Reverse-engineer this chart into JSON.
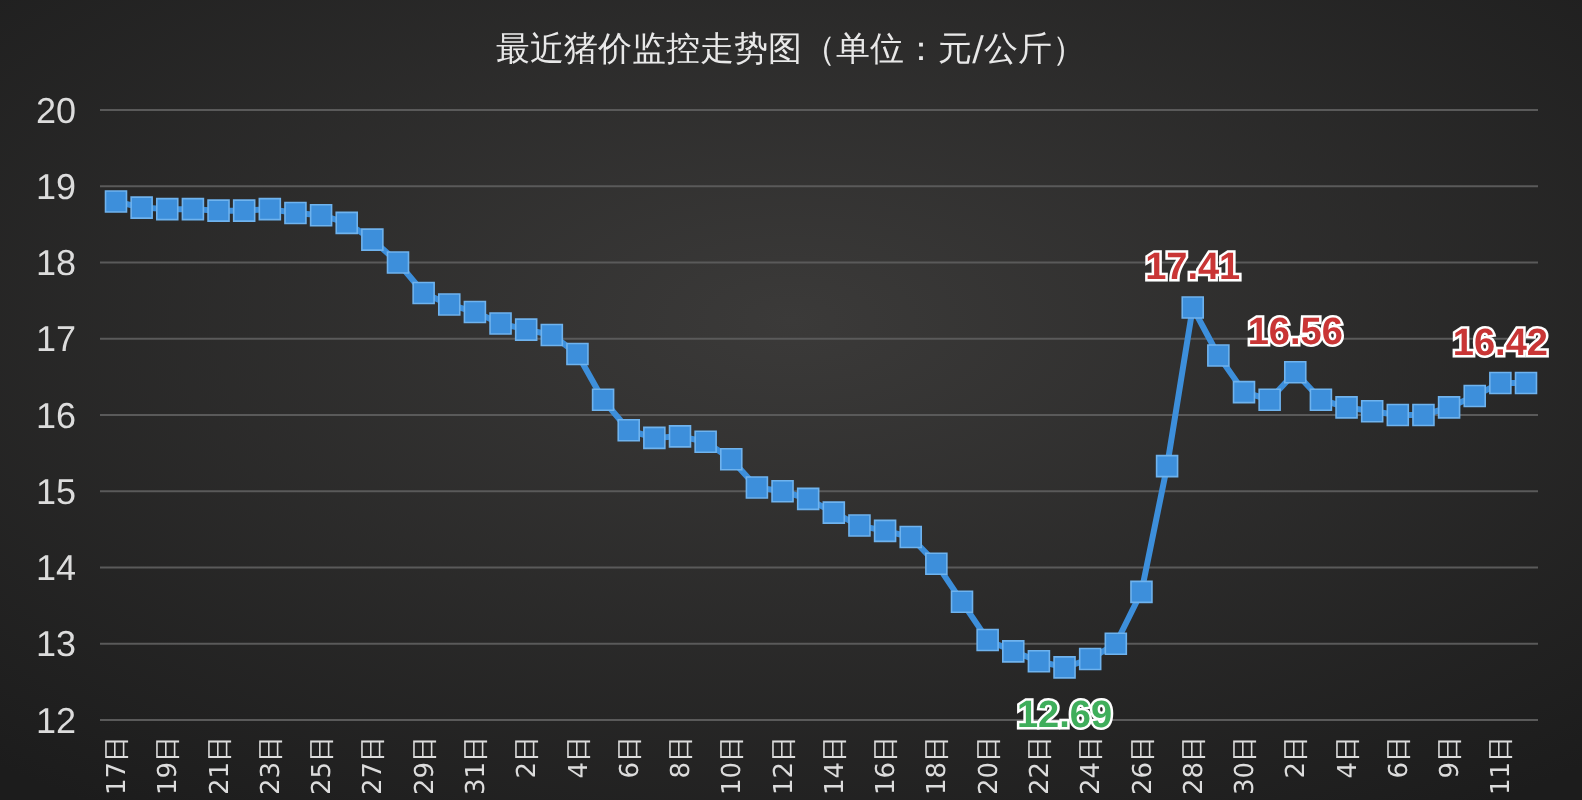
{
  "chart_data": {
    "type": "line",
    "title": "最近猪价监控走势图（单位：元/公斤）",
    "categories": [
      "17日",
      null,
      "19日",
      null,
      "21日",
      null,
      "23日",
      null,
      "25日",
      null,
      "27日",
      null,
      "29日",
      null,
      "31日",
      null,
      "2日",
      null,
      "4日",
      null,
      "6日",
      null,
      "8日",
      null,
      "10日",
      null,
      "12日",
      null,
      "14日",
      null,
      "16日",
      null,
      "18日",
      null,
      "20日",
      null,
      "22日",
      null,
      "24日",
      null,
      "26日",
      null,
      "28日",
      null,
      "30日",
      null,
      "2日",
      null,
      "4日",
      null,
      "6日",
      null,
      "9日",
      null,
      "11日",
      null
    ],
    "series": [
      {
        "color": "#3d8fdb",
        "values": [
          18.8,
          18.72,
          18.7,
          18.7,
          18.68,
          18.68,
          18.7,
          18.65,
          18.62,
          18.52,
          18.3,
          18.0,
          17.6,
          17.45,
          17.35,
          17.2,
          17.12,
          17.05,
          16.8,
          16.2,
          15.8,
          15.7,
          15.72,
          15.65,
          15.42,
          15.05,
          15.0,
          14.9,
          14.72,
          14.55,
          14.48,
          14.4,
          14.05,
          13.55,
          13.05,
          12.9,
          12.77,
          12.69,
          12.8,
          13.0,
          13.68,
          15.33,
          17.41,
          16.78,
          16.3,
          16.2,
          16.56,
          16.2,
          16.1,
          16.05,
          16.0,
          16.0,
          16.1,
          16.25,
          16.42,
          16.42
        ],
        "value_labels": [
          null,
          null,
          null,
          null,
          null,
          null,
          null,
          null,
          null,
          null,
          null,
          null,
          null,
          null,
          null,
          null,
          null,
          null,
          null,
          null,
          null,
          null,
          null,
          null,
          null,
          null,
          null,
          null,
          null,
          null,
          null,
          null,
          null,
          null,
          null,
          null,
          null,
          "12.69",
          null,
          null,
          null,
          null,
          "17.41",
          null,
          null,
          null,
          "16.56",
          null,
          null,
          null,
          null,
          null,
          null,
          null,
          "16.42",
          null
        ]
      }
    ],
    "ylim": [
      12,
      20
    ],
    "yticks": [
      12,
      13,
      14,
      15,
      16,
      17,
      18,
      19,
      20
    ],
    "grid": "y",
    "marker": "square",
    "line_style": "solid"
  }
}
